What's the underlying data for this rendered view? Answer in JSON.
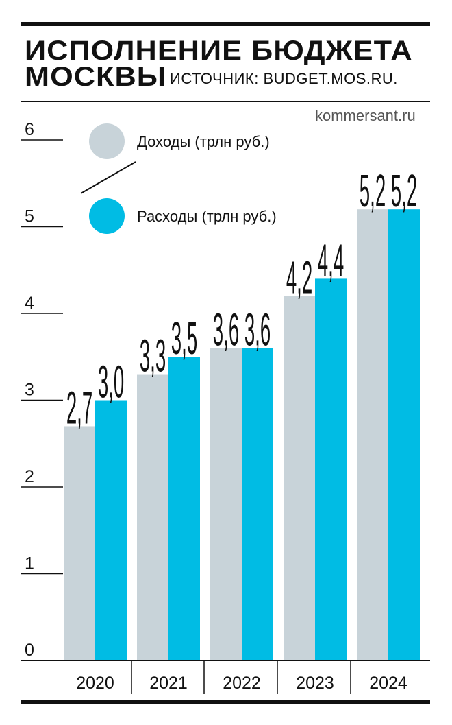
{
  "header": {
    "title_line1": "ИСПОЛНЕНИЕ БЮДЖЕТА",
    "title_line2": "МОСКВЫ",
    "source": "ИСТОЧНИК: BUDGET.MOS.RU.",
    "brand": "kommersant.ru"
  },
  "colors": {
    "income": "#c8d3d9",
    "expense": "#00bce4",
    "ink": "#111111"
  },
  "chart_data": {
    "type": "bar",
    "categories": [
      "2020",
      "2021",
      "2022",
      "2023",
      "2024"
    ],
    "series": [
      {
        "name": "Доходы (трлн руб.)",
        "values": [
          2.7,
          3.3,
          3.6,
          4.2,
          5.2
        ],
        "labels": [
          "2,7",
          "3,3",
          "3,6",
          "4,2",
          "5,2"
        ]
      },
      {
        "name": "Расходы (трлн руб.)",
        "values": [
          3.0,
          3.5,
          3.6,
          4.4,
          5.2
        ],
        "labels": [
          "3,0",
          "3,5",
          "3,6",
          "4,4",
          "5,2"
        ]
      }
    ],
    "yticks": [
      "0",
      "1",
      "2",
      "3",
      "4",
      "5",
      "6"
    ],
    "ylim": [
      0,
      6
    ],
    "legend_position": "top-left"
  }
}
